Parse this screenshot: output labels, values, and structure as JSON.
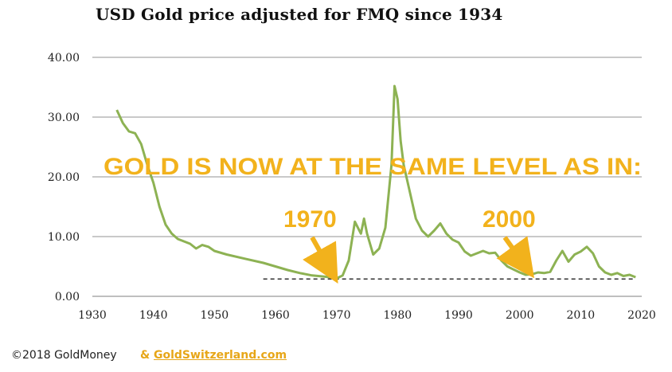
{
  "chart_data": {
    "type": "line",
    "title": "USD Gold price adjusted for FMQ since 1934",
    "xlabel": "",
    "ylabel": "",
    "xlim": [
      1930,
      2020
    ],
    "ylim": [
      0,
      40
    ],
    "grid": true,
    "x_ticks": [
      "1930",
      "1940",
      "1950",
      "1960",
      "1970",
      "1980",
      "1990",
      "2000",
      "2010",
      "2020"
    ],
    "y_ticks": [
      "0.00",
      "10.00",
      "20.00",
      "30.00",
      "40.00"
    ],
    "baseline": {
      "style": "dashed",
      "y": 2.9,
      "x_start": 1958,
      "x_end": 2019
    },
    "series": [
      {
        "name": "",
        "color": "#8db253",
        "points": [
          [
            1934,
            31.2
          ],
          [
            1935,
            29.0
          ],
          [
            1936,
            27.6
          ],
          [
            1937,
            27.3
          ],
          [
            1938,
            25.5
          ],
          [
            1939,
            22.0
          ],
          [
            1940,
            19.0
          ],
          [
            1941,
            15.0
          ],
          [
            1942,
            12.0
          ],
          [
            1943,
            10.5
          ],
          [
            1944,
            9.6
          ],
          [
            1945,
            9.2
          ],
          [
            1946,
            8.8
          ],
          [
            1947,
            8.0
          ],
          [
            1948,
            8.6
          ],
          [
            1949,
            8.3
          ],
          [
            1950,
            7.6
          ],
          [
            1952,
            7.0
          ],
          [
            1955,
            6.3
          ],
          [
            1958,
            5.6
          ],
          [
            1960,
            5.0
          ],
          [
            1962,
            4.4
          ],
          [
            1964,
            3.9
          ],
          [
            1966,
            3.5
          ],
          [
            1968,
            3.3
          ],
          [
            1969,
            3.2
          ],
          [
            1970,
            3.0
          ],
          [
            1971,
            3.5
          ],
          [
            1972,
            6.0
          ],
          [
            1973,
            12.5
          ],
          [
            1974,
            10.5
          ],
          [
            1974.5,
            13.0
          ],
          [
            1975,
            10.5
          ],
          [
            1976,
            7.0
          ],
          [
            1977,
            8.0
          ],
          [
            1978,
            11.5
          ],
          [
            1979,
            22.0
          ],
          [
            1979.5,
            35.2
          ],
          [
            1980,
            33.0
          ],
          [
            1980.5,
            26.0
          ],
          [
            1981,
            22.0
          ],
          [
            1982,
            17.5
          ],
          [
            1983,
            13.0
          ],
          [
            1984,
            11.0
          ],
          [
            1985,
            10.0
          ],
          [
            1986,
            11.0
          ],
          [
            1987,
            12.2
          ],
          [
            1988,
            10.5
          ],
          [
            1989,
            9.5
          ],
          [
            1990,
            9.0
          ],
          [
            1991,
            7.5
          ],
          [
            1992,
            6.8
          ],
          [
            1993,
            7.2
          ],
          [
            1994,
            7.6
          ],
          [
            1995,
            7.2
          ],
          [
            1996,
            7.3
          ],
          [
            1997,
            6.0
          ],
          [
            1998,
            5.0
          ],
          [
            1999,
            4.5
          ],
          [
            2000,
            4.0
          ],
          [
            2001,
            3.6
          ],
          [
            2002,
            3.7
          ],
          [
            2003,
            4.0
          ],
          [
            2004,
            3.9
          ],
          [
            2005,
            4.1
          ],
          [
            2006,
            6.0
          ],
          [
            2007,
            7.6
          ],
          [
            2008,
            5.8
          ],
          [
            2009,
            7.0
          ],
          [
            2010,
            7.5
          ],
          [
            2011,
            8.3
          ],
          [
            2012,
            7.2
          ],
          [
            2013,
            5.0
          ],
          [
            2014,
            4.0
          ],
          [
            2015,
            3.6
          ],
          [
            2016,
            3.9
          ],
          [
            2017,
            3.4
          ],
          [
            2018,
            3.6
          ],
          [
            2019,
            3.2
          ]
        ]
      }
    ],
    "annotations": [
      {
        "text": "GOLD IS NOW AT THE SAME LEVEL AS IN:",
        "color": "#f2b21c"
      },
      {
        "text": "1970",
        "color": "#f2b21c",
        "points_to": [
          1970,
          3.0
        ]
      },
      {
        "text": "2000",
        "color": "#f2b21c",
        "points_to": [
          2002,
          3.8
        ]
      }
    ]
  },
  "footer": {
    "copyright": "©2018 GoldMoney",
    "ampersand": "&",
    "site": "GoldSwitzerland.com"
  }
}
